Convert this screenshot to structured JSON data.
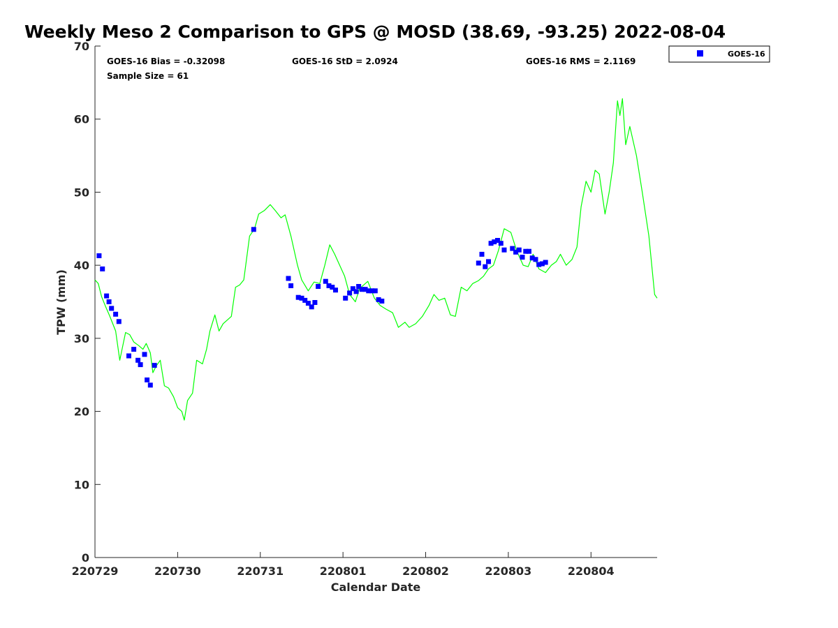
{
  "chart_data": {
    "type": "scatter",
    "title": "Weekly Meso 2 Comparison to GPS @ MOSD (38.69, -93.25) 2022-08-04",
    "xlabel": "Calendar Date",
    "ylabel": "TPW (mm)",
    "x_unit": "days",
    "xlim": [
      0,
      6.8
    ],
    "ylim": [
      0,
      70
    ],
    "x_ticks": [
      {
        "x": 0,
        "label": "220729"
      },
      {
        "x": 1,
        "label": "220730"
      },
      {
        "x": 2,
        "label": "220731"
      },
      {
        "x": 3,
        "label": "220801"
      },
      {
        "x": 4,
        "label": "220802"
      },
      {
        "x": 5,
        "label": "220803"
      },
      {
        "x": 6,
        "label": "220804"
      }
    ],
    "y_ticks": [
      0,
      10,
      20,
      30,
      40,
      50,
      60,
      70
    ],
    "grid": false,
    "legend_position": "outside-top-right",
    "stats": {
      "bias": "GOES-16 Bias = -0.32098",
      "std": "GOES-16 StD = 2.0924",
      "rms": "GOES-16 RMS = 2.1169",
      "sample_size": "Sample Size = 61"
    },
    "series": [
      {
        "name": "GPS",
        "style": "line",
        "color": "#00ff00",
        "points": [
          [
            0.0,
            38.0
          ],
          [
            0.04,
            37.5
          ],
          [
            0.08,
            35.7
          ],
          [
            0.13,
            34.3
          ],
          [
            0.18,
            33.0
          ],
          [
            0.25,
            31.0
          ],
          [
            0.3,
            27.0
          ],
          [
            0.37,
            30.8
          ],
          [
            0.42,
            30.5
          ],
          [
            0.47,
            29.5
          ],
          [
            0.53,
            29.0
          ],
          [
            0.58,
            28.5
          ],
          [
            0.62,
            29.3
          ],
          [
            0.67,
            28.0
          ],
          [
            0.7,
            25.3
          ],
          [
            0.74,
            26.2
          ],
          [
            0.79,
            27.0
          ],
          [
            0.84,
            23.5
          ],
          [
            0.89,
            23.2
          ],
          [
            0.95,
            22.0
          ],
          [
            1.0,
            20.5
          ],
          [
            1.05,
            20.0
          ],
          [
            1.08,
            18.8
          ],
          [
            1.12,
            21.5
          ],
          [
            1.18,
            22.5
          ],
          [
            1.23,
            27.0
          ],
          [
            1.3,
            26.5
          ],
          [
            1.35,
            28.5
          ],
          [
            1.39,
            31.0
          ],
          [
            1.45,
            33.2
          ],
          [
            1.5,
            31.0
          ],
          [
            1.55,
            32.0
          ],
          [
            1.6,
            32.5
          ],
          [
            1.65,
            33.0
          ],
          [
            1.7,
            37.0
          ],
          [
            1.75,
            37.3
          ],
          [
            1.8,
            38.0
          ],
          [
            1.87,
            44.0
          ],
          [
            1.93,
            45.0
          ],
          [
            1.98,
            47.0
          ],
          [
            2.05,
            47.5
          ],
          [
            2.12,
            48.3
          ],
          [
            2.18,
            47.5
          ],
          [
            2.25,
            46.5
          ],
          [
            2.3,
            46.9
          ],
          [
            2.37,
            44.0
          ],
          [
            2.45,
            40.0
          ],
          [
            2.5,
            38.0
          ],
          [
            2.58,
            36.5
          ],
          [
            2.65,
            37.7
          ],
          [
            2.72,
            37.5
          ],
          [
            2.78,
            40.0
          ],
          [
            2.84,
            42.8
          ],
          [
            2.9,
            41.5
          ],
          [
            2.96,
            40.0
          ],
          [
            3.02,
            38.5
          ],
          [
            3.08,
            36.0
          ],
          [
            3.15,
            35.0
          ],
          [
            3.2,
            36.8
          ],
          [
            3.3,
            37.8
          ],
          [
            3.38,
            35.5
          ],
          [
            3.45,
            34.5
          ],
          [
            3.52,
            34.0
          ],
          [
            3.6,
            33.5
          ],
          [
            3.67,
            31.5
          ],
          [
            3.75,
            32.2
          ],
          [
            3.8,
            31.5
          ],
          [
            3.88,
            32.0
          ],
          [
            3.96,
            33.0
          ],
          [
            4.04,
            34.5
          ],
          [
            4.1,
            36.0
          ],
          [
            4.16,
            35.2
          ],
          [
            4.23,
            35.5
          ],
          [
            4.3,
            33.2
          ],
          [
            4.36,
            33.0
          ],
          [
            4.43,
            37.0
          ],
          [
            4.5,
            36.5
          ],
          [
            4.57,
            37.5
          ],
          [
            4.64,
            37.9
          ],
          [
            4.7,
            38.5
          ],
          [
            4.76,
            39.5
          ],
          [
            4.82,
            40.0
          ],
          [
            4.88,
            42.0
          ],
          [
            4.95,
            45.0
          ],
          [
            5.03,
            44.5
          ],
          [
            5.1,
            42.0
          ],
          [
            5.18,
            40.0
          ],
          [
            5.24,
            39.8
          ],
          [
            5.3,
            41.5
          ],
          [
            5.37,
            39.5
          ],
          [
            5.45,
            39.0
          ],
          [
            5.52,
            40.0
          ],
          [
            5.58,
            40.5
          ],
          [
            5.63,
            41.5
          ],
          [
            5.7,
            40.0
          ],
          [
            5.77,
            40.8
          ],
          [
            5.83,
            42.5
          ],
          [
            5.88,
            48.0
          ],
          [
            5.94,
            51.5
          ],
          [
            6.0,
            50.0
          ],
          [
            6.05,
            53.0
          ],
          [
            6.1,
            52.5
          ],
          [
            6.17,
            47.0
          ],
          [
            6.22,
            50.0
          ],
          [
            6.27,
            54.0
          ],
          [
            6.32,
            62.5
          ],
          [
            6.35,
            60.5
          ],
          [
            6.38,
            62.8
          ],
          [
            6.42,
            56.5
          ],
          [
            6.47,
            59.0
          ],
          [
            6.55,
            55.0
          ],
          [
            6.62,
            50.0
          ],
          [
            6.7,
            44.0
          ],
          [
            6.77,
            36.0
          ],
          [
            6.8,
            35.5
          ]
        ]
      },
      {
        "name": "GOES-16",
        "style": "square",
        "color": "#0000ff",
        "points": [
          [
            0.05,
            41.3
          ],
          [
            0.09,
            39.5
          ],
          [
            0.14,
            35.8
          ],
          [
            0.17,
            35.0
          ],
          [
            0.2,
            34.1
          ],
          [
            0.25,
            33.3
          ],
          [
            0.29,
            32.3
          ],
          [
            0.41,
            27.6
          ],
          [
            0.47,
            28.5
          ],
          [
            0.52,
            27.0
          ],
          [
            0.55,
            26.4
          ],
          [
            0.6,
            27.8
          ],
          [
            0.63,
            24.3
          ],
          [
            0.67,
            23.6
          ],
          [
            0.72,
            26.3
          ],
          [
            1.92,
            44.9
          ],
          [
            2.34,
            38.2
          ],
          [
            2.37,
            37.2
          ],
          [
            2.46,
            35.6
          ],
          [
            2.5,
            35.5
          ],
          [
            2.54,
            35.2
          ],
          [
            2.58,
            34.8
          ],
          [
            2.62,
            34.3
          ],
          [
            2.66,
            34.9
          ],
          [
            2.7,
            37.1
          ],
          [
            2.79,
            37.8
          ],
          [
            2.83,
            37.2
          ],
          [
            2.87,
            37.0
          ],
          [
            2.91,
            36.6
          ],
          [
            3.03,
            35.5
          ],
          [
            3.08,
            36.2
          ],
          [
            3.12,
            36.8
          ],
          [
            3.16,
            36.4
          ],
          [
            3.19,
            37.1
          ],
          [
            3.23,
            36.7
          ],
          [
            3.27,
            36.7
          ],
          [
            3.31,
            36.5
          ],
          [
            3.35,
            36.5
          ],
          [
            3.39,
            36.5
          ],
          [
            3.43,
            35.3
          ],
          [
            3.47,
            35.1
          ],
          [
            4.64,
            40.3
          ],
          [
            4.68,
            41.5
          ],
          [
            4.72,
            39.8
          ],
          [
            4.76,
            40.5
          ],
          [
            4.79,
            43.0
          ],
          [
            4.83,
            43.2
          ],
          [
            4.87,
            43.4
          ],
          [
            4.91,
            43.0
          ],
          [
            4.95,
            42.1
          ],
          [
            5.05,
            42.3
          ],
          [
            5.09,
            41.8
          ],
          [
            5.13,
            42.1
          ],
          [
            5.17,
            41.1
          ],
          [
            5.21,
            41.9
          ],
          [
            5.25,
            41.9
          ],
          [
            5.29,
            41.0
          ],
          [
            5.33,
            40.8
          ],
          [
            5.37,
            40.1
          ],
          [
            5.41,
            40.2
          ],
          [
            5.45,
            40.4
          ]
        ]
      }
    ]
  }
}
